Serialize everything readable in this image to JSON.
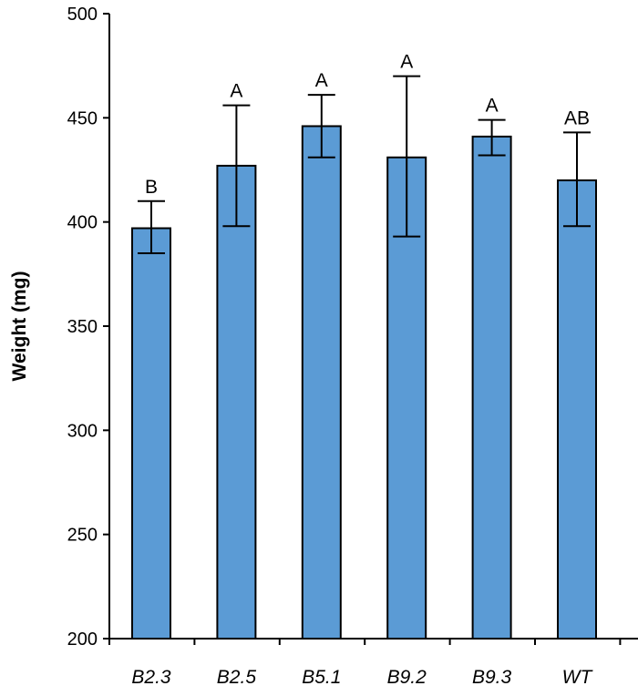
{
  "chart_data": {
    "type": "bar",
    "title": "",
    "xlabel": "",
    "ylabel": "Weight (mg)",
    "ylim": [
      200,
      500
    ],
    "yticks": [
      200,
      250,
      300,
      350,
      400,
      450,
      500
    ],
    "grid": false,
    "categories": [
      "B2.3",
      "B2.5",
      "B5.1",
      "B9.2",
      "B9.3",
      "WT"
    ],
    "values": [
      397,
      427,
      446,
      431,
      441,
      420
    ],
    "error_upper": [
      410,
      456,
      461,
      470,
      449,
      443
    ],
    "error_lower": [
      385,
      398,
      431,
      393,
      432,
      398
    ],
    "significance_letters": [
      "B",
      "A",
      "A",
      "A",
      "A",
      "AB"
    ],
    "bar_color": "#5B9BD5"
  }
}
